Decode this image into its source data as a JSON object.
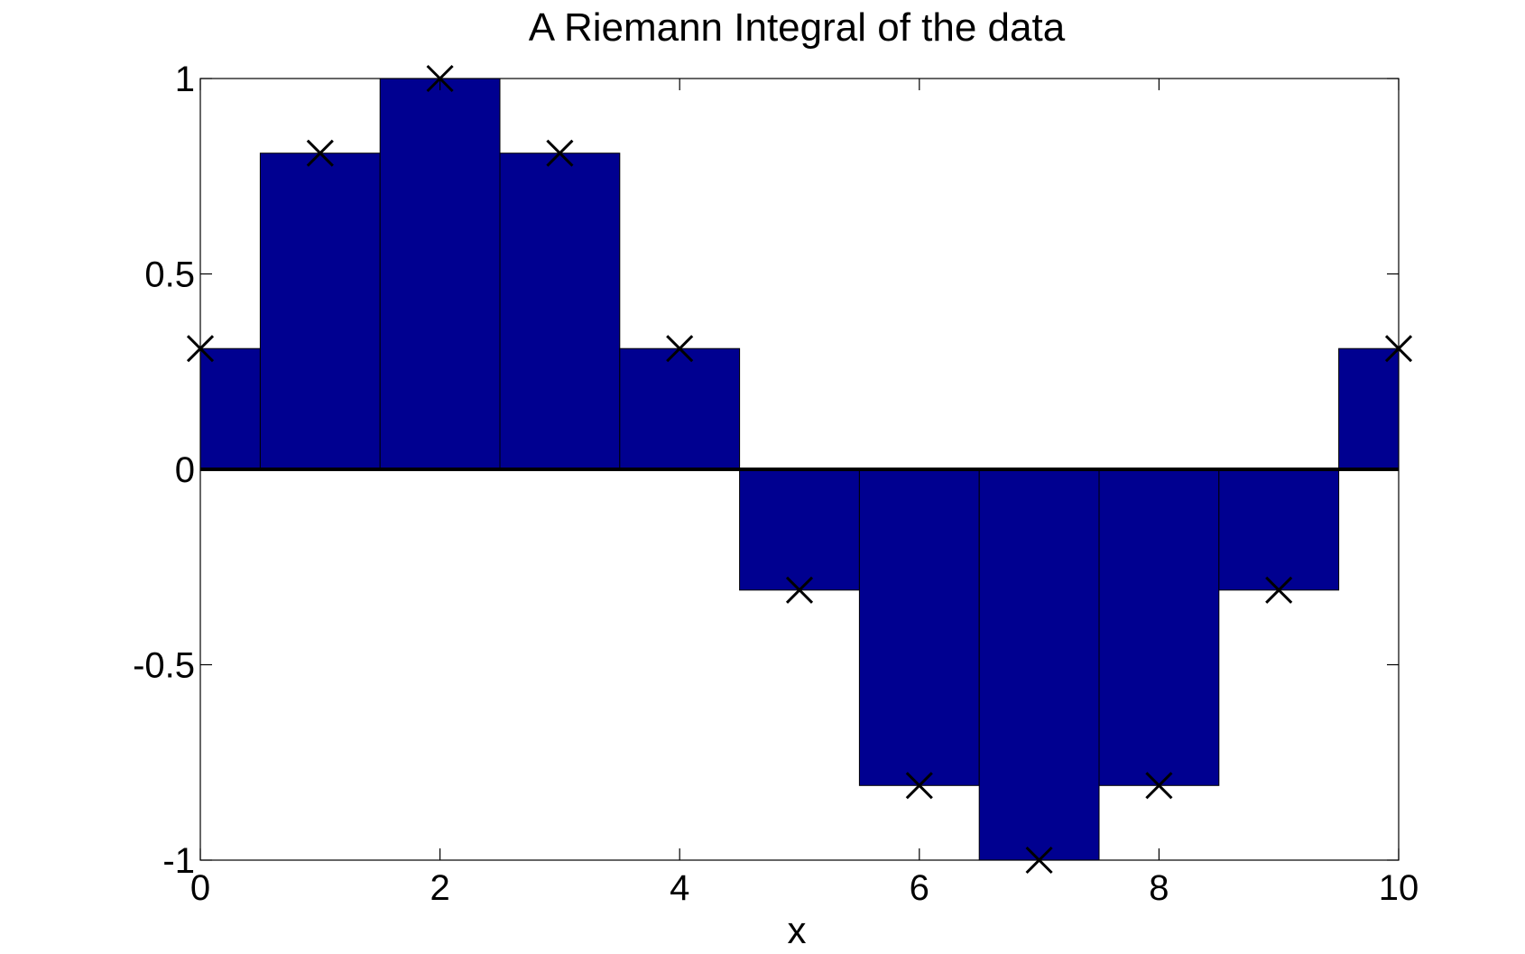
{
  "chart_data": {
    "type": "bar",
    "title": "A Riemann Integral of the data",
    "xlabel": "x",
    "ylabel": "",
    "xlim": [
      0,
      10
    ],
    "ylim": [
      -1,
      1
    ],
    "x_ticks": [
      0,
      2,
      4,
      6,
      8,
      10
    ],
    "x_tick_labels": [
      "0",
      "2",
      "4",
      "6",
      "8",
      "10"
    ],
    "y_ticks": [
      1,
      0.5,
      0,
      -0.5,
      -1
    ],
    "y_tick_labels": [
      "1",
      "0.5",
      "0",
      "-0.5",
      "-1"
    ],
    "bar_width": 1,
    "series": [
      {
        "kind": "bar",
        "x": [
          0,
          1,
          2,
          3,
          4,
          5,
          6,
          7,
          8,
          9,
          10
        ],
        "values": [
          0.309,
          0.809,
          1.0,
          0.809,
          0.309,
          -0.309,
          -0.809,
          -1.0,
          -0.809,
          -0.309,
          0.309
        ],
        "color": "#000090"
      },
      {
        "kind": "scatter",
        "marker": "x",
        "x": [
          0,
          1,
          2,
          3,
          4,
          5,
          6,
          7,
          8,
          9,
          10
        ],
        "values": [
          0.309,
          0.809,
          1.0,
          0.809,
          0.309,
          -0.309,
          -0.809,
          -1.0,
          -0.809,
          -0.309,
          0.309
        ],
        "color": "#000000"
      }
    ],
    "zero_line": true,
    "grid": false
  }
}
